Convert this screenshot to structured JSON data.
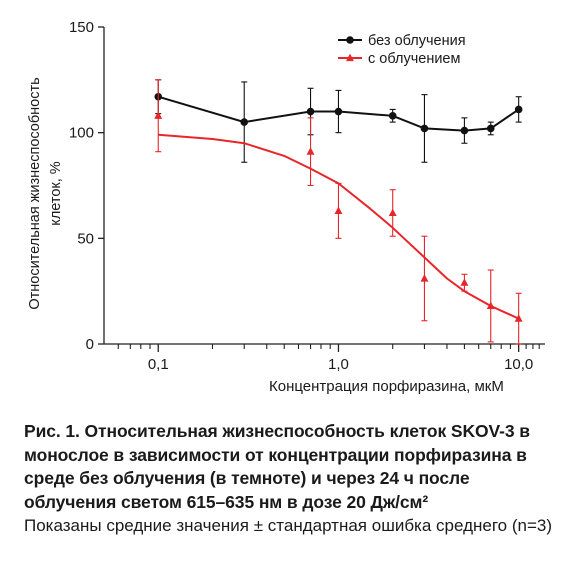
{
  "chart_data": {
    "type": "line",
    "title": "",
    "xlabel": "Концентрация порфиразина, мкМ",
    "ylabel_lines": [
      "Относительная жизнеспособность",
      "клеток, %"
    ],
    "x_scale": "log",
    "xlim": [
      0.05,
      14
    ],
    "ylim": [
      0,
      150
    ],
    "x_ticks": [
      0.1,
      1.0,
      10.0
    ],
    "x_tick_labels": [
      "0,1",
      "1,0",
      "10,0"
    ],
    "y_ticks": [
      0,
      50,
      100,
      150
    ],
    "y_tick_labels": [
      "0",
      "50",
      "100",
      "150"
    ],
    "legend_position": "top-right",
    "series": [
      {
        "name": "без облучения",
        "color": "#111111",
        "marker": "circle",
        "x": [
          0.1,
          0.3,
          0.7,
          1.0,
          2.0,
          3.0,
          5.0,
          7.0,
          10.0
        ],
        "y": [
          117,
          105,
          110,
          110,
          108,
          102,
          101,
          102,
          111
        ],
        "err": [
          8,
          19,
          11,
          10,
          3,
          16,
          6,
          3,
          6
        ]
      },
      {
        "name": "с облучением",
        "color": "#e8262a",
        "marker": "triangle",
        "x": [
          0.1,
          0.7,
          1.0,
          2.0,
          3.0,
          5.0,
          7.0,
          10.0
        ],
        "y": [
          108,
          91,
          63,
          62,
          31,
          29,
          18,
          12
        ],
        "err": [
          17,
          16,
          13,
          11,
          20,
          4,
          17,
          12
        ],
        "fit_curve": {
          "x": [
            0.1,
            0.2,
            0.3,
            0.5,
            0.7,
            1.0,
            1.5,
            2.0,
            3.0,
            4.0,
            5.0,
            7.0,
            10.0
          ],
          "y": [
            99,
            97,
            95,
            89,
            83,
            76,
            64,
            55,
            41,
            31,
            25,
            18,
            12
          ]
        }
      }
    ]
  },
  "caption": {
    "title": "Рис. 1. Относительная жизнеспособность клеток SKOV-3 в монослое в зависимости от концентрации порфиразина в среде без облучения (в темноте) и через 24 ч после облучения светом 615–635 нм в дозе 20 Дж/см²",
    "note": "Показаны средние значения ± стандартная ошибка среднего (n=3)"
  }
}
